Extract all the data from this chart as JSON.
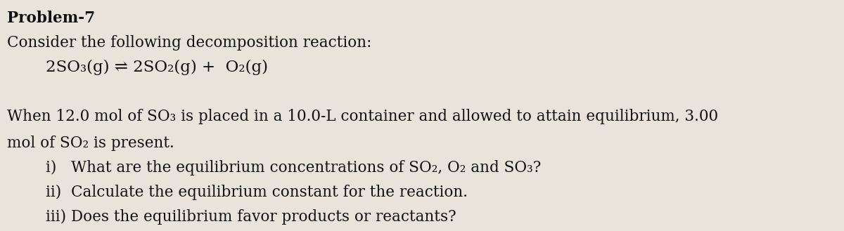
{
  "background_color": "#e8e4dc",
  "text_color": "#111111",
  "title": "Problem-7",
  "line1": "Consider the following decomposition reaction:",
  "equation": "2SO₃(g) ⇌ 2SO₂(g) +  O₂(g)",
  "paragraph": "When 12.0 mol of SO₃ is placed in a 10.0-L container and allowed to attain equilibrium, 3.00",
  "paragraph2": "mol of SO₂ is present.",
  "item_i": "i)   What are the equilibrium concentrations of SO₂, O₂ and SO₃?",
  "item_ii": "ii)  Calculate the equilibrium constant for the reaction.",
  "item_iii": "iii) Does the equilibrium favor products or reactants?",
  "figwidth": 12.0,
  "figheight": 3.29,
  "dpi": 100
}
